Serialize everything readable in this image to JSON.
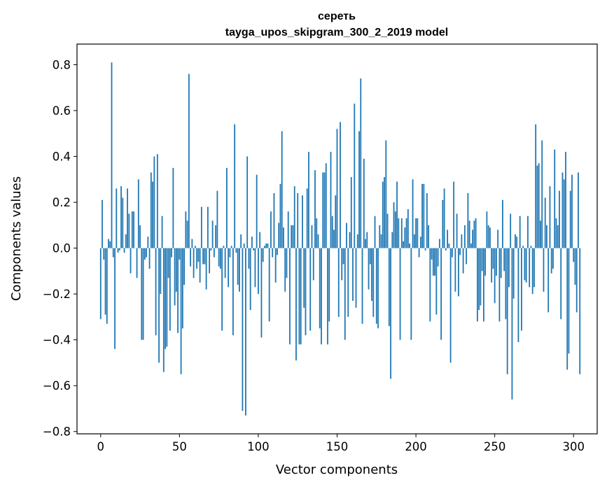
{
  "chart_data": {
    "type": "bar",
    "title": "сереть",
    "subtitle": "tayga_upos_skipgram_300_2_2019 model",
    "xlabel": "Vector components",
    "ylabel": "Components values",
    "xlim": [
      -15,
      315
    ],
    "ylim": [
      -0.81,
      0.89
    ],
    "xticks": [
      0,
      50,
      100,
      150,
      200,
      250,
      300
    ],
    "yticks": [
      -0.8,
      -0.6,
      -0.4,
      -0.2,
      0.0,
      0.2,
      0.4,
      0.6,
      0.8
    ],
    "ytick_labels": [
      "−0.8",
      "−0.6",
      "−0.4",
      "−0.2",
      "0.0",
      "0.2",
      "0.4",
      "0.6",
      "0.8"
    ],
    "xtick_labels": [
      "0",
      "50",
      "100",
      "150",
      "200",
      "250",
      "300"
    ],
    "bar_color": "#1f77b4",
    "values": [
      -0.31,
      0.21,
      -0.05,
      -0.29,
      -0.33,
      0.04,
      0.03,
      0.81,
      -0.04,
      -0.44,
      0.26,
      -0.02,
      -0.01,
      0.27,
      0.22,
      -0.02,
      0.06,
      0.26,
      0.15,
      -0.11,
      0.16,
      0.16,
      0.0,
      -0.13,
      0.3,
      0.1,
      -0.4,
      -0.4,
      -0.05,
      -0.04,
      0.05,
      -0.09,
      0.33,
      0.29,
      0.4,
      -0.38,
      0.41,
      -0.5,
      -0.2,
      0.14,
      -0.54,
      -0.44,
      -0.43,
      -0.13,
      -0.36,
      -0.04,
      0.35,
      -0.25,
      -0.19,
      -0.37,
      -0.05,
      -0.55,
      -0.35,
      -0.16,
      0.16,
      0.12,
      0.76,
      -0.08,
      0.04,
      -0.13,
      0.01,
      -0.09,
      -0.06,
      -0.15,
      0.18,
      -0.07,
      -0.07,
      -0.18,
      0.18,
      -0.11,
      -0.01,
      0.12,
      -0.04,
      0.1,
      0.25,
      -0.08,
      -0.09,
      -0.36,
      0.01,
      -0.13,
      0.35,
      -0.17,
      -0.04,
      0.01,
      -0.38,
      0.54,
      -0.02,
      -0.16,
      -0.19,
      0.06,
      -0.71,
      0.02,
      -0.73,
      0.4,
      -0.09,
      -0.27,
      0.05,
      -0.01,
      -0.17,
      0.32,
      -0.2,
      0.07,
      -0.39,
      -0.06,
      0.01,
      0.02,
      0.02,
      -0.32,
      0.16,
      -0.04,
      0.24,
      -0.15,
      -0.03,
      0.11,
      0.28,
      0.51,
      0.09,
      -0.19,
      -0.13,
      0.16,
      -0.42,
      0.1,
      0.1,
      0.27,
      -0.49,
      0.24,
      -0.42,
      -0.42,
      0.23,
      -0.26,
      -0.38,
      0.26,
      0.42,
      -0.36,
      0.1,
      -0.14,
      0.34,
      0.13,
      0.06,
      -0.35,
      -0.42,
      0.33,
      0.33,
      0.37,
      -0.42,
      -0.32,
      0.42,
      0.14,
      0.08,
      0.23,
      0.52,
      -0.3,
      0.55,
      -0.14,
      -0.07,
      -0.4,
      0.11,
      -0.3,
      0.07,
      0.31,
      -0.23,
      0.63,
      -0.26,
      0.06,
      0.51,
      0.74,
      -0.33,
      0.39,
      0.04,
      0.07,
      -0.18,
      -0.07,
      -0.23,
      -0.3,
      0.14,
      -0.33,
      -0.35,
      0.1,
      0.06,
      0.29,
      0.31,
      0.47,
      0.15,
      -0.34,
      -0.57,
      0.07,
      0.2,
      0.16,
      0.29,
      0.13,
      -0.4,
      0.13,
      0.03,
      0.09,
      0.13,
      0.17,
      0.02,
      -0.4,
      0.3,
      0.06,
      0.13,
      0.13,
      -0.04,
      0.05,
      0.28,
      0.28,
      -0.01,
      0.24,
      0.1,
      -0.32,
      -0.05,
      -0.12,
      -0.12,
      -0.29,
      -0.08,
      0.04,
      -0.4,
      0.21,
      0.26,
      -0.01,
      0.08,
      0.02,
      -0.5,
      -0.04,
      0.29,
      -0.19,
      0.15,
      -0.21,
      -0.03,
      0.06,
      -0.11,
      0.1,
      -0.07,
      0.24,
      0.12,
      0.02,
      0.08,
      0.12,
      0.13,
      -0.32,
      -0.27,
      -0.25,
      -0.1,
      -0.32,
      -0.12,
      0.16,
      0.1,
      0.09,
      -0.15,
      -0.09,
      -0.24,
      -0.12,
      0.08,
      -0.32,
      -0.13,
      0.21,
      -0.1,
      -0.31,
      -0.55,
      -0.17,
      0.15,
      -0.66,
      -0.22,
      0.06,
      0.05,
      -0.41,
      0.14,
      -0.36,
      0.01,
      -0.14,
      -0.15,
      0.14,
      -0.17,
      0.01,
      -0.2,
      -0.17,
      0.54,
      0.36,
      0.37,
      0.12,
      0.47,
      -0.19,
      0.22,
      0.1,
      -0.28,
      0.27,
      -0.11,
      -0.09,
      0.43,
      0.13,
      0.1,
      0.25,
      -0.31,
      0.33,
      0.3,
      0.42,
      -0.53,
      -0.46,
      0.25,
      0.32,
      -0.06,
      -0.16,
      -0.28,
      0.33,
      -0.55
    ]
  }
}
